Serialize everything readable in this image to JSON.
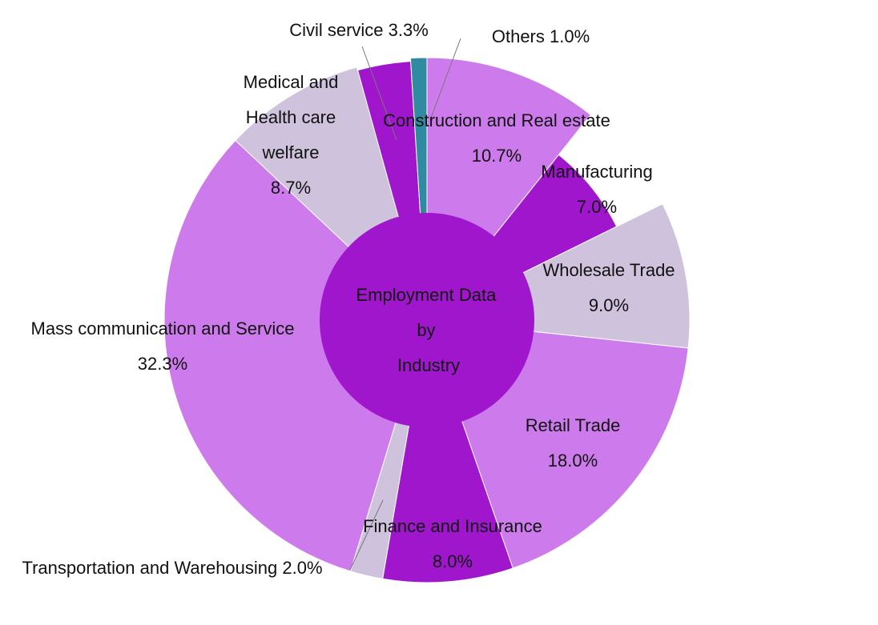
{
  "chart_data": {
    "type": "pie",
    "title": [
      "Employment Data",
      "by",
      "Industry"
    ],
    "slices": [
      {
        "label": [
          "Construction and Real estate"
        ],
        "value": 10.7,
        "value_label": "10.7%",
        "color": "#CD7BEC"
      },
      {
        "label": [
          "Manufacturing"
        ],
        "value": 7.0,
        "value_label": "7.0%",
        "color": "#A016CC"
      },
      {
        "label": [
          "Wholesale Trade"
        ],
        "value": 9.0,
        "value_label": "9.0%",
        "color": "#CEC2DD"
      },
      {
        "label": [
          "Retail Trade"
        ],
        "value": 18.0,
        "value_label": "18.0%",
        "color": "#CD7BEC"
      },
      {
        "label": [
          "Finance and Insurance"
        ],
        "value": 8.0,
        "value_label": "8.0%",
        "color": "#A016CC"
      },
      {
        "label": [
          "Transportation and Warehousing 2.0%"
        ],
        "value": 2.0,
        "value_label": "",
        "color": "#CEC2DD"
      },
      {
        "label": [
          "Mass communication and Service"
        ],
        "value": 32.3,
        "value_label": "32.3%",
        "color": "#CD7BEC"
      },
      {
        "label": [
          "Medical and",
          "Health care",
          "welfare"
        ],
        "value": 8.7,
        "value_label": "8.7%",
        "color": "#CEC2DD"
      },
      {
        "label": [
          "Civil service 3.3%"
        ],
        "value": 3.3,
        "value_label": "",
        "color": "#A016CC"
      },
      {
        "label": [
          "Others 1.0%"
        ],
        "value": 1.0,
        "value_label": "",
        "color": "#2E8BA0"
      }
    ],
    "center_color": "#A016CC"
  }
}
